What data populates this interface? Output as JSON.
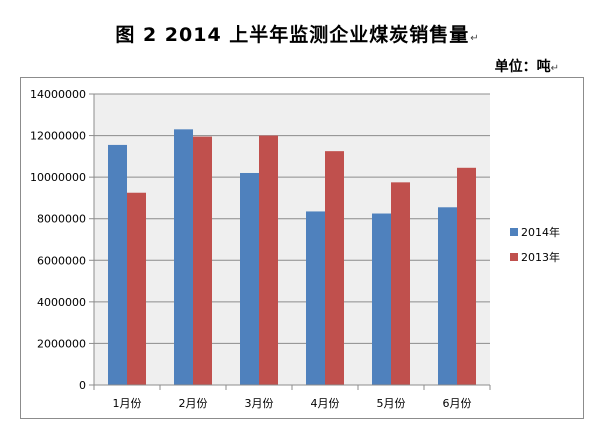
{
  "figure": {
    "title": "图 2   2014 上半年监测企业煤炭销售量",
    "para_mark": "↵",
    "unit": "单位：吨"
  },
  "chart_data": {
    "type": "bar",
    "categories": [
      "1月份",
      "2月份",
      "3月份",
      "4月份",
      "5月份",
      "6月份"
    ],
    "series": [
      {
        "name": "2014年",
        "color": "#4f81bd",
        "values": [
          11550000,
          12300000,
          10200000,
          8350000,
          8250000,
          8550000
        ]
      },
      {
        "name": "2013年",
        "color": "#c0504d",
        "values": [
          9250000,
          11950000,
          12000000,
          11250000,
          9750000,
          10450000
        ]
      }
    ],
    "ylim": [
      0,
      14000000
    ],
    "yticks": [
      "0",
      "2000000",
      "4000000",
      "6000000",
      "8000000",
      "10000000",
      "12000000",
      "14000000"
    ],
    "grid": true,
    "legend": "right"
  }
}
